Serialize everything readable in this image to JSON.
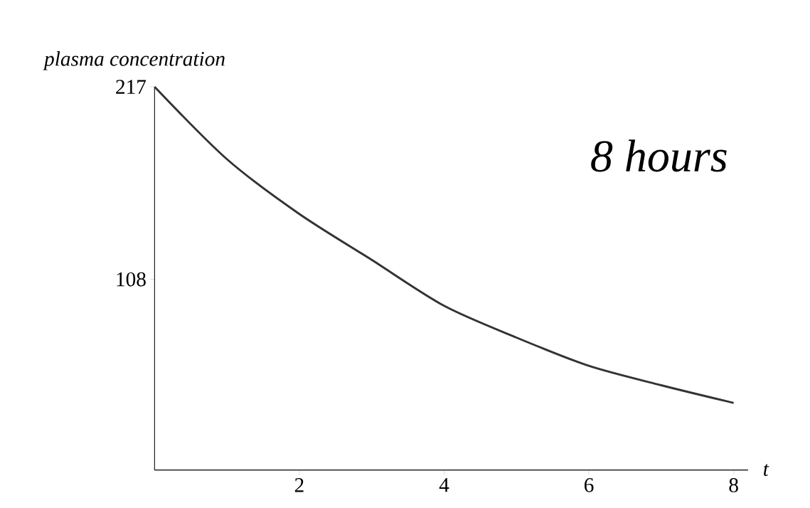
{
  "chart_data": {
    "type": "line",
    "xlabel": "t",
    "ylabel": "plasma concentration",
    "annotations": [
      "8 hours"
    ],
    "x": [
      0,
      1,
      2,
      3,
      4,
      5,
      6,
      7,
      8
    ],
    "series": [
      {
        "color": "#333333",
        "values": [
          217,
          176,
          145,
          119,
          93,
          75,
          59,
          48,
          38
        ]
      }
    ],
    "xlim": [
      0,
      8.2
    ],
    "ylim": [
      0,
      217
    ],
    "xticks": [
      2,
      4,
      6,
      8
    ],
    "yticks": [
      108,
      217
    ],
    "grid": false
  }
}
